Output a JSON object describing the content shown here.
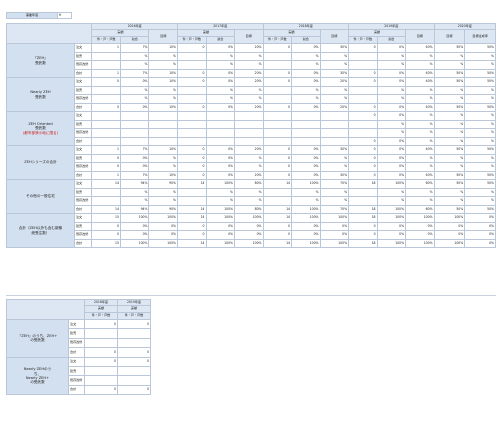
{
  "top": {
    "label": "事業年度",
    "value": "H"
  },
  "years": [
    "2016年度",
    "2017年度",
    "2018年度",
    "2019年度",
    "2020年度"
  ],
  "col_labels": {
    "actual": "実績",
    "count": "件・戸・戸数",
    "ratio": "割合",
    "target": "目標",
    "target2": "目標達成率"
  },
  "blank": "",
  "sections": [
    {
      "name": "『ZEH』\n受託数",
      "rows": [
        {
          "label": "注文",
          "cells": [
            "1",
            "7%",
            "10%",
            "0",
            "0%",
            "20%",
            "0",
            "0%",
            "30%",
            "0",
            "0%",
            "40%",
            "50%",
            "50%"
          ]
        },
        {
          "label": "建売",
          "cells": [
            "",
            "%",
            "%",
            "",
            "%",
            "%",
            "",
            "%",
            "%",
            "",
            "%",
            "%",
            "%",
            "%"
          ]
        },
        {
          "label": "既存改修",
          "cells": [
            "",
            "%",
            "%",
            "",
            "%",
            "%",
            "",
            "%",
            "%",
            "",
            "%",
            "%",
            "%",
            "%"
          ]
        },
        {
          "label": "合計",
          "cells": [
            "1",
            "7%",
            "10%",
            "0",
            "0%",
            "20%",
            "0",
            "0%",
            "30%",
            "0",
            "0%",
            "40%",
            "50%",
            "50%"
          ]
        }
      ]
    },
    {
      "name": "Nearly ZEH\n受託数",
      "rows": [
        {
          "label": "注文",
          "cells": [
            "0",
            "0%",
            "10%",
            "0",
            "0%",
            "20%",
            "0",
            "0%",
            "20%",
            "0",
            "0%",
            "40%",
            "50%",
            "50%"
          ]
        },
        {
          "label": "建売",
          "cells": [
            "",
            "%",
            "%",
            "",
            "%",
            "%",
            "",
            "%",
            "%",
            "",
            "%",
            "%",
            "%",
            "%"
          ]
        },
        {
          "label": "既存改修",
          "cells": [
            "",
            "%",
            "%",
            "",
            "%",
            "%",
            "",
            "%",
            "%",
            "",
            "%",
            "%",
            "%",
            "%"
          ]
        },
        {
          "label": "合計",
          "cells": [
            "0",
            "0%",
            "10%",
            "0",
            "0%",
            "20%",
            "0",
            "0%",
            "20%",
            "0",
            "0%",
            "40%",
            "50%",
            "50%"
          ]
        }
      ]
    },
    {
      "name": "ZEH Oriented\n受託数",
      "name_red": "(都市部狭小地に限る)",
      "partial": true,
      "rows": [
        {
          "label": "注文",
          "cells": [
            "",
            "",
            "",
            "",
            "",
            "",
            "",
            "",
            "",
            "0",
            "0%",
            "%",
            "%",
            "%"
          ]
        },
        {
          "label": "建売",
          "cells": [
            "",
            "",
            "",
            "",
            "",
            "",
            "",
            "",
            "",
            "",
            "%",
            "%",
            "%",
            "%"
          ]
        },
        {
          "label": "既存改修",
          "cells": [
            "",
            "",
            "",
            "",
            "",
            "",
            "",
            "",
            "",
            "",
            "%",
            "%",
            "%",
            "%"
          ]
        },
        {
          "label": "合計",
          "cells": [
            "",
            "",
            "",
            "",
            "",
            "",
            "",
            "",
            "",
            "0",
            "0%",
            "%",
            "%",
            "%"
          ]
        }
      ]
    },
    {
      "name": "ZEHシリーズの合計",
      "rows": [
        {
          "label": "注文",
          "cells": [
            "1",
            "7%",
            "10%",
            "0",
            "0%",
            "20%",
            "0",
            "0%",
            "30%",
            "0",
            "0%",
            "40%",
            "50%",
            "50%"
          ]
        },
        {
          "label": "建売",
          "cells": [
            "0",
            "0%",
            "%",
            "0",
            "0%",
            "%",
            "0",
            "0%",
            "%",
            "0",
            "0%",
            "%",
            "%",
            "%"
          ]
        },
        {
          "label": "既存改修",
          "cells": [
            "0",
            "0%",
            "%",
            "0",
            "0%",
            "%",
            "0",
            "0%",
            "%",
            "0",
            "0%",
            "%",
            "%",
            "%"
          ]
        },
        {
          "label": "合計",
          "cells": [
            "1",
            "7%",
            "10%",
            "0",
            "0%",
            "20%",
            "0",
            "0%",
            "30%",
            "0",
            "0%",
            "40%",
            "50%",
            "50%"
          ]
        }
      ]
    },
    {
      "name": "その他の一般住宅",
      "rows": [
        {
          "label": "注文",
          "cells": [
            "14",
            "94%",
            "90%",
            "14",
            "100%",
            "80%",
            "14",
            "100%",
            "70%",
            "18",
            "100%",
            "60%",
            "50%",
            "50%"
          ]
        },
        {
          "label": "建売",
          "cells": [
            "",
            "%",
            "%",
            "",
            "%",
            "%",
            "",
            "%",
            "%",
            "",
            "%",
            "%",
            "%",
            "%"
          ]
        },
        {
          "label": "既存改修",
          "cells": [
            "",
            "%",
            "%",
            "",
            "%",
            "%",
            "",
            "%",
            "%",
            "",
            "%",
            "%",
            "%",
            "%"
          ]
        },
        {
          "label": "合計",
          "cells": [
            "14",
            "94%",
            "90%",
            "14",
            "100%",
            "80%",
            "14",
            "100%",
            "70%",
            "18",
            "100%",
            "60%",
            "50%",
            "50%"
          ]
        }
      ]
    },
    {
      "name": "合計（ZEH以外も含む新築\n総受注数）",
      "rows": [
        {
          "label": "注文",
          "cells": [
            "15",
            "100%",
            "100%",
            "14",
            "100%",
            "100%",
            "14",
            "100%",
            "100%",
            "18",
            "100%",
            "100%",
            "100%",
            "0%"
          ]
        },
        {
          "label": "建売",
          "cells": [
            "0",
            "0%",
            "0%",
            "0",
            "0%",
            "0%",
            "0",
            "0%",
            "0%",
            "0",
            "0%",
            "0%",
            "0%",
            "0%"
          ]
        },
        {
          "label": "既存改修",
          "cells": [
            "0",
            "0%",
            "0%",
            "0",
            "0%",
            "0%",
            "0",
            "0%",
            "0%",
            "0",
            "0%",
            "0%",
            "0%",
            "0%"
          ]
        },
        {
          "label": "合計",
          "cells": [
            "15",
            "100%",
            "100%",
            "14",
            "100%",
            "100%",
            "14",
            "100%",
            "100%",
            "18",
            "100%",
            "100%",
            "100%",
            "0%"
          ]
        }
      ]
    }
  ],
  "lower": {
    "years": [
      "2018年度",
      "2019年度"
    ],
    "sections": [
      {
        "name": "『ZEH』のうち、ZEH+\nの受託数",
        "rows": [
          {
            "label": "注文",
            "cells": [
              "0",
              "0"
            ]
          },
          {
            "label": "建売",
            "cells": [
              "",
              ""
            ]
          },
          {
            "label": "既存改修",
            "cells": [
              "",
              ""
            ]
          },
          {
            "label": "合計",
            "cells": [
              "0",
              "0"
            ]
          }
        ]
      },
      {
        "name": "Nearly ZEHのう\nち、\nNearly ZEH+\nの受託数",
        "rows": [
          {
            "label": "注文",
            "cells": [
              "0",
              "0"
            ]
          },
          {
            "label": "建売",
            "cells": [
              "",
              ""
            ]
          },
          {
            "label": "既存改修",
            "cells": [
              "",
              ""
            ]
          },
          {
            "label": "合計",
            "cells": [
              "0",
              "0"
            ]
          }
        ]
      }
    ]
  }
}
